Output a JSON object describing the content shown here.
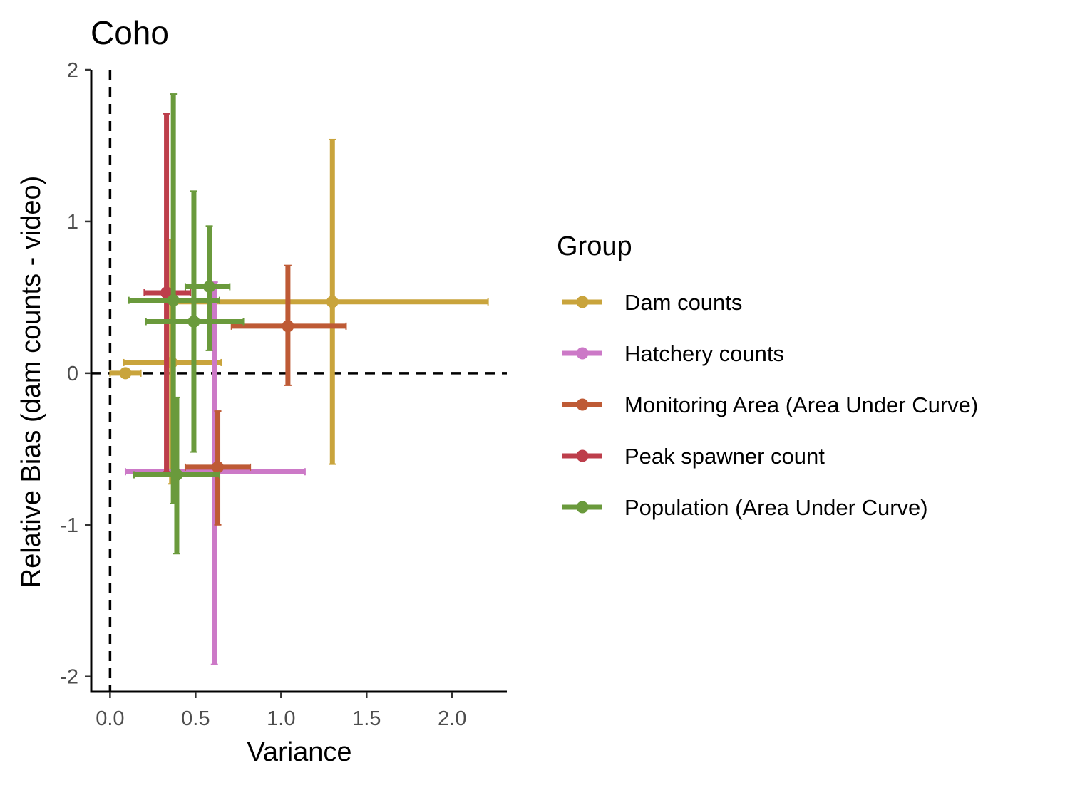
{
  "chart_data": {
    "type": "scatter",
    "title": "Coho",
    "xlabel": "Variance",
    "ylabel": "Relative Bias (dam counts - video)",
    "xlim": [
      -0.11,
      2.32
    ],
    "ylim": [
      -2.1,
      2.0
    ],
    "xticks": [
      0.0,
      0.5,
      1.0,
      1.5,
      2.0
    ],
    "xtick_labels": [
      "0.0",
      "0.5",
      "1.0",
      "1.5",
      "2.0"
    ],
    "yticks": [
      -2,
      -1,
      0,
      1,
      2
    ],
    "ytick_labels": [
      "-2",
      "-1",
      "0",
      "1",
      "2"
    ],
    "reference_lines": [
      {
        "orientation": "horizontal",
        "value": 0,
        "style": "dashed"
      },
      {
        "orientation": "vertical",
        "value": 0,
        "style": "dashed"
      }
    ],
    "grid": false,
    "legend": {
      "title": "Group",
      "position": "right"
    },
    "series": [
      {
        "name": "Dam counts",
        "color": "#C9A43C",
        "points": [
          {
            "x": 0.09,
            "y": 0.0,
            "xmin": 0.0,
            "xmax": 0.18,
            "ymin": -0.02,
            "ymax": 0.02
          },
          {
            "x": 0.36,
            "y": 0.07,
            "xmin": 0.08,
            "xmax": 0.65,
            "ymin": -0.73,
            "ymax": 0.88
          },
          {
            "x": 1.3,
            "y": 0.47,
            "xmin": 0.37,
            "xmax": 2.21,
            "ymin": -0.6,
            "ymax": 1.54
          }
        ]
      },
      {
        "name": "Hatchery counts",
        "color": "#CC79C7",
        "points": [
          {
            "x": 0.61,
            "y": -0.65,
            "xmin": 0.09,
            "xmax": 1.14,
            "ymin": -1.92,
            "ymax": 0.6
          }
        ]
      },
      {
        "name": "Monitoring Area (Area Under Curve)",
        "color": "#BE5A35",
        "points": [
          {
            "x": 1.04,
            "y": 0.31,
            "xmin": 0.71,
            "xmax": 1.38,
            "ymin": -0.08,
            "ymax": 0.71
          },
          {
            "x": 0.63,
            "y": -0.62,
            "xmin": 0.44,
            "xmax": 0.82,
            "ymin": -1.0,
            "ymax": -0.25
          }
        ]
      },
      {
        "name": "Peak spawner count",
        "color": "#BD3E4B",
        "points": [
          {
            "x": 0.33,
            "y": 0.53,
            "xmin": 0.2,
            "xmax": 0.47,
            "ymin": -0.65,
            "ymax": 1.71
          }
        ]
      },
      {
        "name": "Population (Area Under Curve)",
        "color": "#6A9A3C",
        "points": [
          {
            "x": 0.37,
            "y": 0.48,
            "xmin": 0.11,
            "xmax": 0.64,
            "ymin": -0.86,
            "ymax": 1.84
          },
          {
            "x": 0.49,
            "y": 0.34,
            "xmin": 0.21,
            "xmax": 0.78,
            "ymin": -0.52,
            "ymax": 1.2
          },
          {
            "x": 0.58,
            "y": 0.57,
            "xmin": 0.44,
            "xmax": 0.7,
            "ymin": 0.15,
            "ymax": 0.97
          },
          {
            "x": 0.39,
            "y": -0.67,
            "xmin": 0.14,
            "xmax": 0.64,
            "ymin": -1.19,
            "ymax": -0.16
          }
        ]
      }
    ]
  }
}
